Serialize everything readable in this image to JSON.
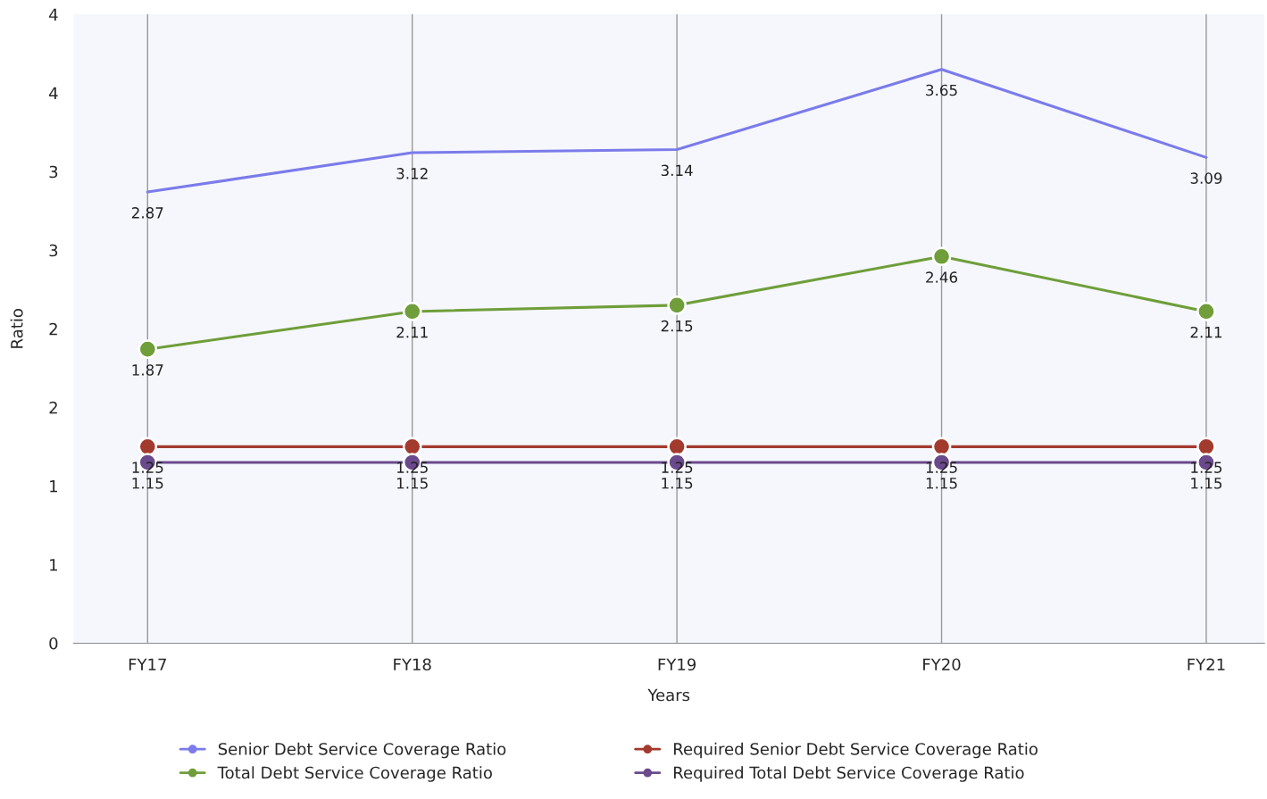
{
  "chart_data": {
    "type": "line",
    "xlabel": "Years",
    "ylabel": "Ratio",
    "categories": [
      "FY17",
      "FY18",
      "FY19",
      "FY20",
      "FY21"
    ],
    "series": [
      {
        "name": "Senior Debt Service Coverage Ratio",
        "color": "#7b7bea",
        "marker": "none",
        "values": [
          2.87,
          3.12,
          3.14,
          3.65,
          3.09
        ]
      },
      {
        "name": "Total Debt Service Coverage Ratio",
        "color": "#6f9e3a",
        "marker": "circle",
        "values": [
          1.87,
          2.11,
          2.15,
          2.46,
          2.11
        ]
      },
      {
        "name": "Required Senior Debt Service Coverage Ratio",
        "color": "#a33a2e",
        "marker": "circle",
        "values": [
          1.25,
          1.25,
          1.25,
          1.25,
          1.25
        ]
      },
      {
        "name": "Required Total Debt Service Coverage Ratio",
        "color": "#6a4a8c",
        "marker": "circle",
        "values": [
          1.15,
          1.15,
          1.15,
          1.15,
          1.15
        ]
      }
    ],
    "ylim": [
      0,
      4
    ],
    "yticks": [
      0,
      {
        "value": 0.5,
        "label": "1"
      },
      {
        "value": 1,
        "label": "1"
      },
      {
        "value": 1.5,
        "label": "2"
      },
      {
        "value": 2,
        "label": "2"
      },
      {
        "value": 2.5,
        "label": "3"
      },
      {
        "value": 3,
        "label": "3"
      },
      {
        "value": 3.5,
        "label": "4"
      },
      {
        "value": 4,
        "label": "4"
      }
    ],
    "grid": "x",
    "legend": "bottom",
    "data_labels": true,
    "line_style": "solid"
  }
}
